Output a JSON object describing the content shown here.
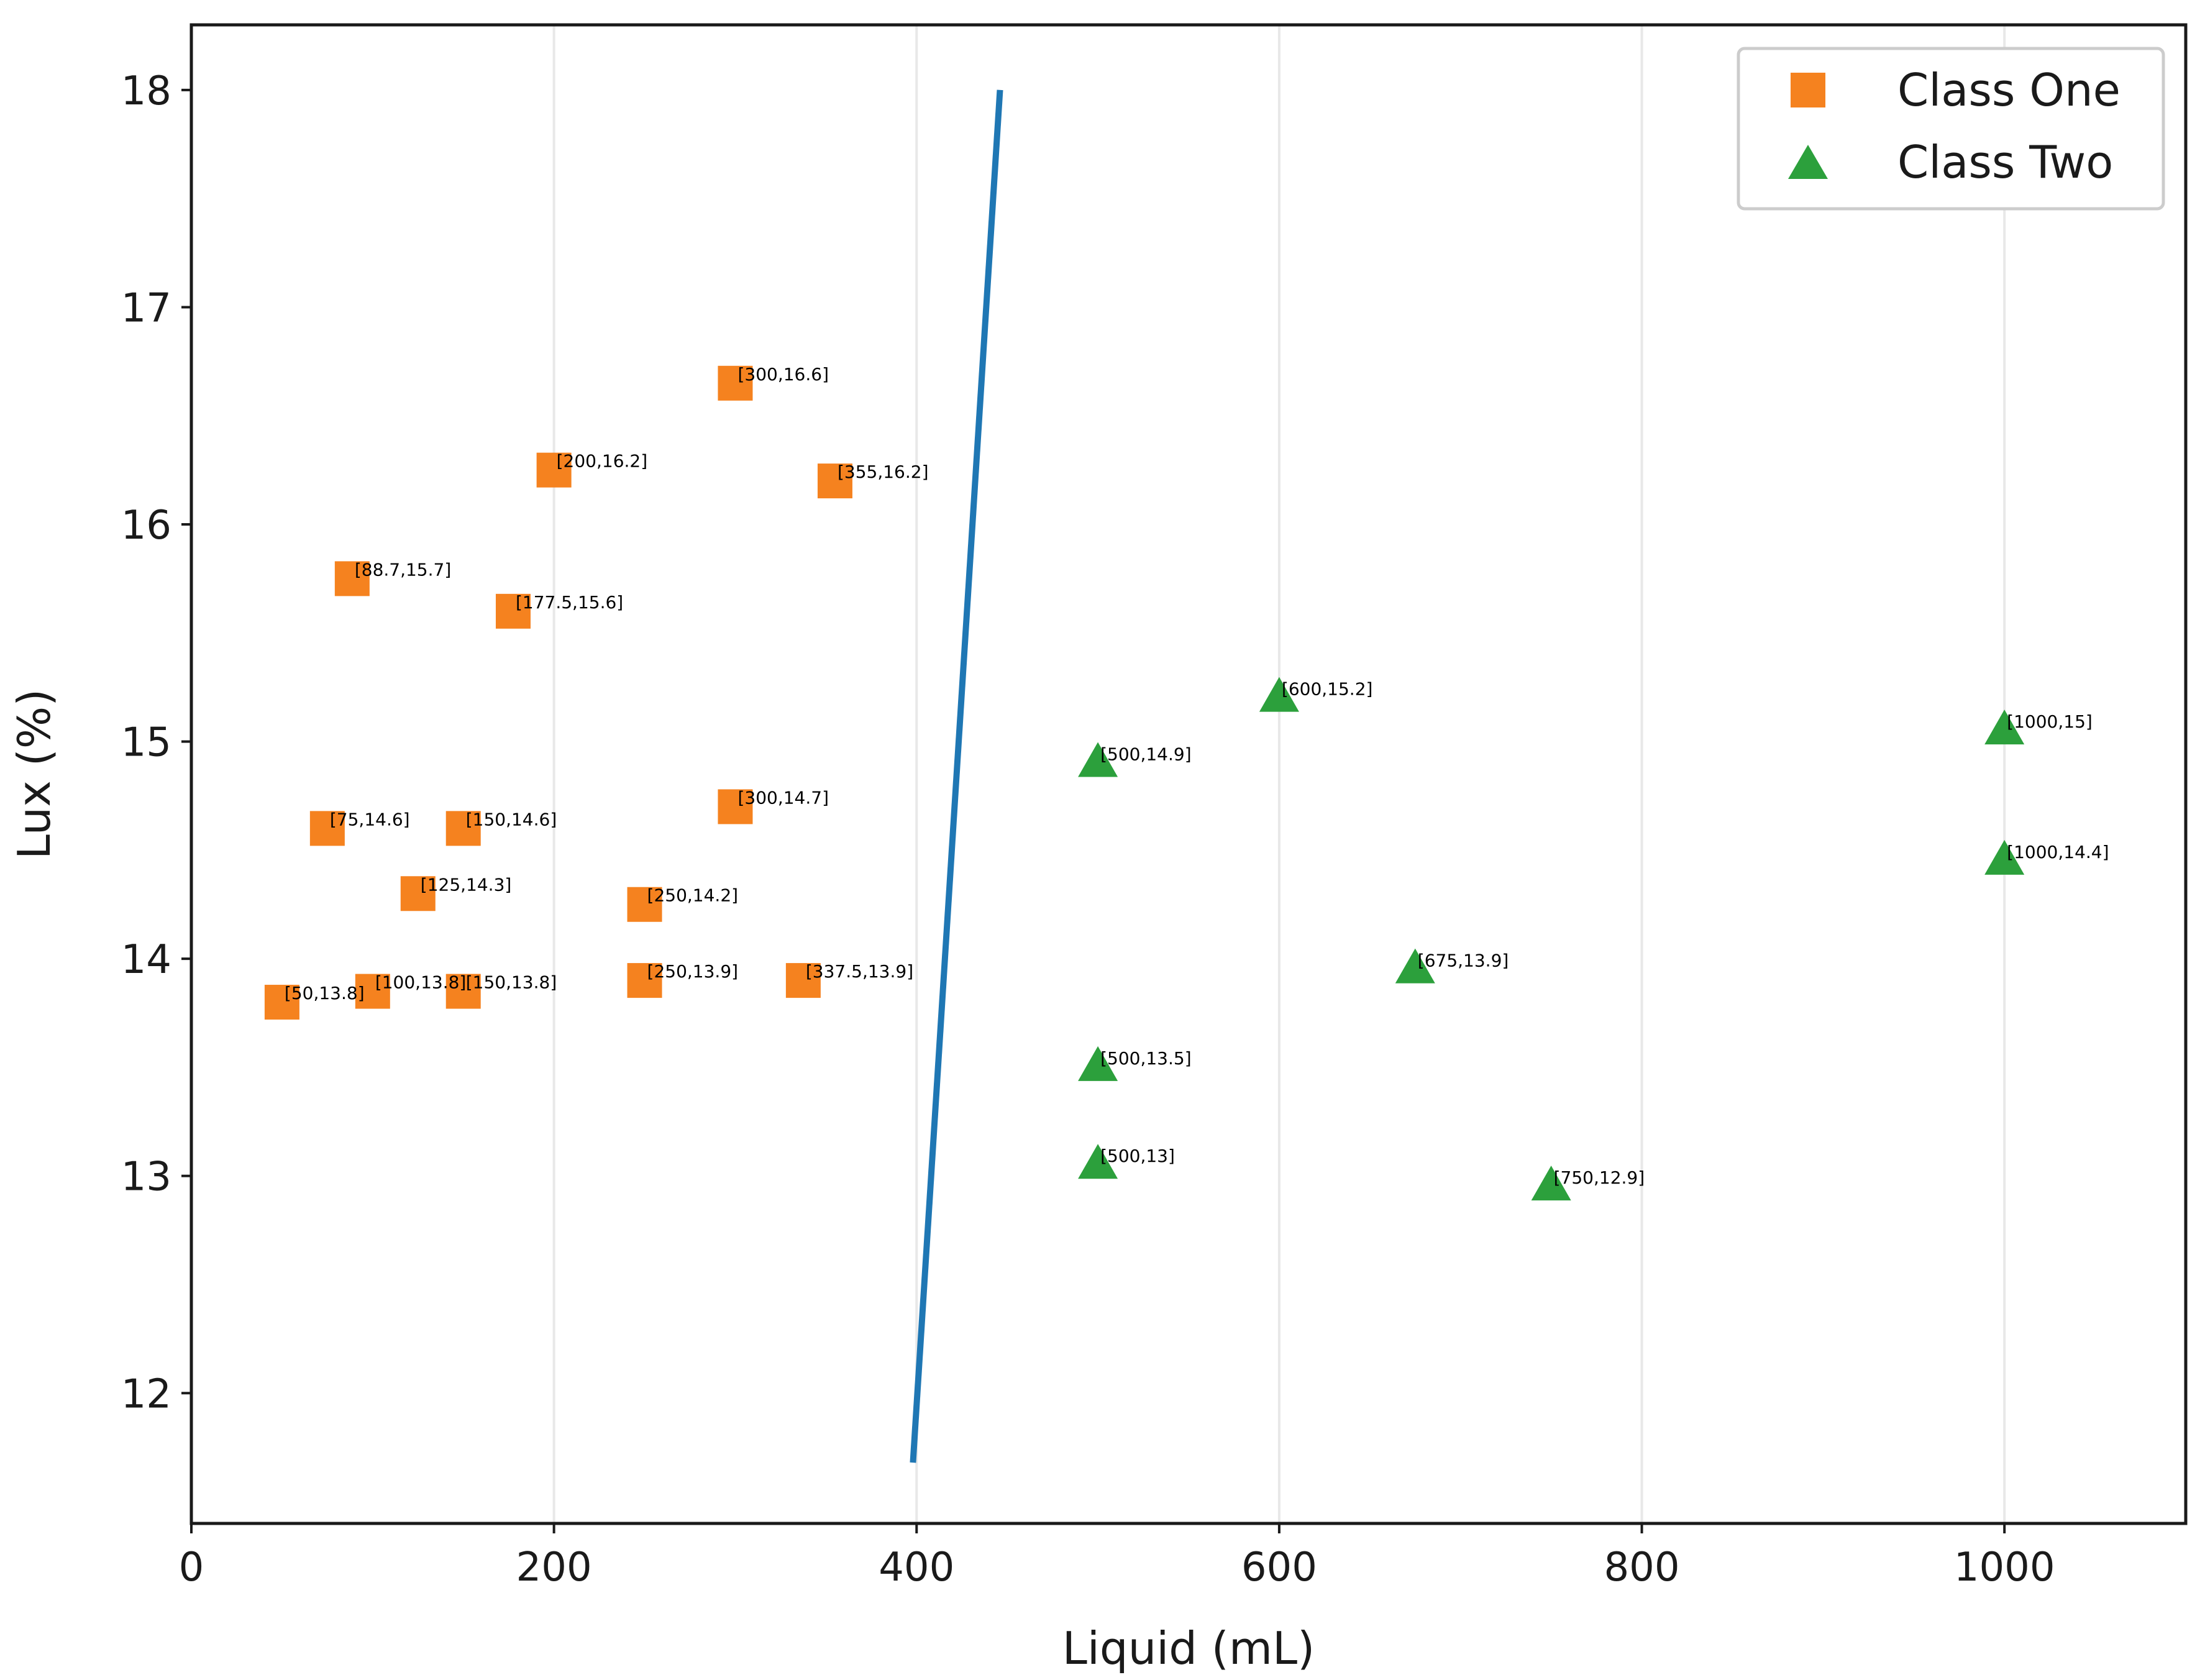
{
  "chart_data": {
    "type": "scatter",
    "title": "",
    "xlabel": "Liquid (mL)",
    "ylabel": "Lux (%)",
    "xlim": [
      0,
      1100
    ],
    "ylim": [
      11.4,
      18.3
    ],
    "xticks": [
      0,
      200,
      400,
      600,
      800,
      1000
    ],
    "yticks": [
      12,
      13,
      14,
      15,
      16,
      17,
      18
    ],
    "x_tick_labels": [
      "0",
      "200",
      "400",
      "600",
      "800",
      "1000"
    ],
    "y_tick_labels": [
      "12",
      "13",
      "14",
      "15",
      "16",
      "17",
      "18"
    ],
    "grid": "vertical",
    "legend_position": "top-right",
    "colors": {
      "class_one": "#f5821f",
      "class_two": "#2ca03c",
      "line": "#1f77b4",
      "grid": "#e8e8e8",
      "axis": "#1a1a1a"
    },
    "series": [
      {
        "name": "Class One",
        "marker": "square",
        "points": [
          {
            "x": 300,
            "y": 16.65,
            "label": "[300,16.6]"
          },
          {
            "x": 200,
            "y": 16.25,
            "label": "[200,16.2]"
          },
          {
            "x": 355,
            "y": 16.2,
            "label": "[355,16.2]"
          },
          {
            "x": 88.7,
            "y": 15.75,
            "label": "[88.7,15.7]"
          },
          {
            "x": 177.5,
            "y": 15.6,
            "label": "[177.5,15.6]"
          },
          {
            "x": 300,
            "y": 14.7,
            "label": "[300,14.7]"
          },
          {
            "x": 75,
            "y": 14.6,
            "label": "[75,14.6]"
          },
          {
            "x": 150,
            "y": 14.6,
            "label": "[150,14.6]"
          },
          {
            "x": 125,
            "y": 14.3,
            "label": "[125,14.3]"
          },
          {
            "x": 250,
            "y": 14.25,
            "label": "[250,14.2]"
          },
          {
            "x": 250,
            "y": 13.9,
            "label": "[250,13.9]"
          },
          {
            "x": 337.5,
            "y": 13.9,
            "label": "[337.5,13.9]"
          },
          {
            "x": 100,
            "y": 13.85,
            "label": "[100,13.8]"
          },
          {
            "x": 150,
            "y": 13.85,
            "label": "[150,13.8]"
          },
          {
            "x": 50,
            "y": 13.8,
            "label": "[50,13.8]"
          }
        ]
      },
      {
        "name": "Class Two",
        "marker": "triangle",
        "points": [
          {
            "x": 600,
            "y": 15.2,
            "label": "[600,15.2]"
          },
          {
            "x": 1000,
            "y": 15.05,
            "label": "[1000,15]"
          },
          {
            "x": 500,
            "y": 14.9,
            "label": "[500,14.9]"
          },
          {
            "x": 1000,
            "y": 14.45,
            "label": "[1000,14.4]"
          },
          {
            "x": 675,
            "y": 13.95,
            "label": "[675,13.9]"
          },
          {
            "x": 500,
            "y": 13.5,
            "label": "[500,13.5]"
          },
          {
            "x": 500,
            "y": 13.05,
            "label": "[500,13]"
          },
          {
            "x": 750,
            "y": 12.95,
            "label": "[750,12.9]"
          }
        ]
      }
    ],
    "decision_line": {
      "x": [
        398,
        446
      ],
      "y": [
        11.68,
        18.0
      ]
    }
  }
}
